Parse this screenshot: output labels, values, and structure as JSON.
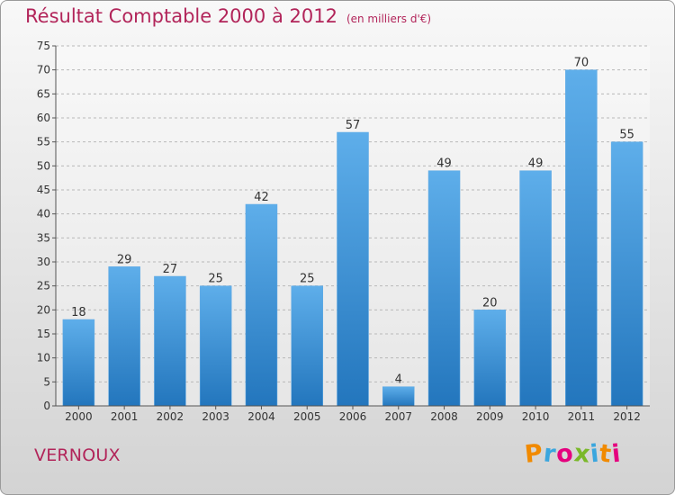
{
  "chart_data": {
    "type": "bar",
    "title": "Résultat Comptable 2000 à 2012",
    "subtitle": "(en milliers d'€)",
    "categories": [
      "2000",
      "2001",
      "2002",
      "2003",
      "2004",
      "2005",
      "2006",
      "2007",
      "2008",
      "2009",
      "2010",
      "2011",
      "2012"
    ],
    "values": [
      18,
      29,
      27,
      25,
      42,
      25,
      57,
      4,
      49,
      20,
      49,
      70,
      55
    ],
    "xlabel": "",
    "ylabel": "",
    "ylim": [
      0,
      75
    ],
    "yticks": [
      0,
      5,
      10,
      15,
      20,
      25,
      30,
      35,
      40,
      45,
      50,
      55,
      60,
      65,
      70,
      75
    ],
    "grid": true,
    "bar_color": "#3a8fd6"
  },
  "footer": {
    "commune": "VERNOUX",
    "brand": "Proxiti",
    "brand_colors": [
      "#f18a00",
      "#3aa6de",
      "#e5007e",
      "#7ab829",
      "#3aa6de",
      "#f18a00",
      "#e5007e"
    ]
  },
  "colors": {
    "title": "#b2255a"
  }
}
